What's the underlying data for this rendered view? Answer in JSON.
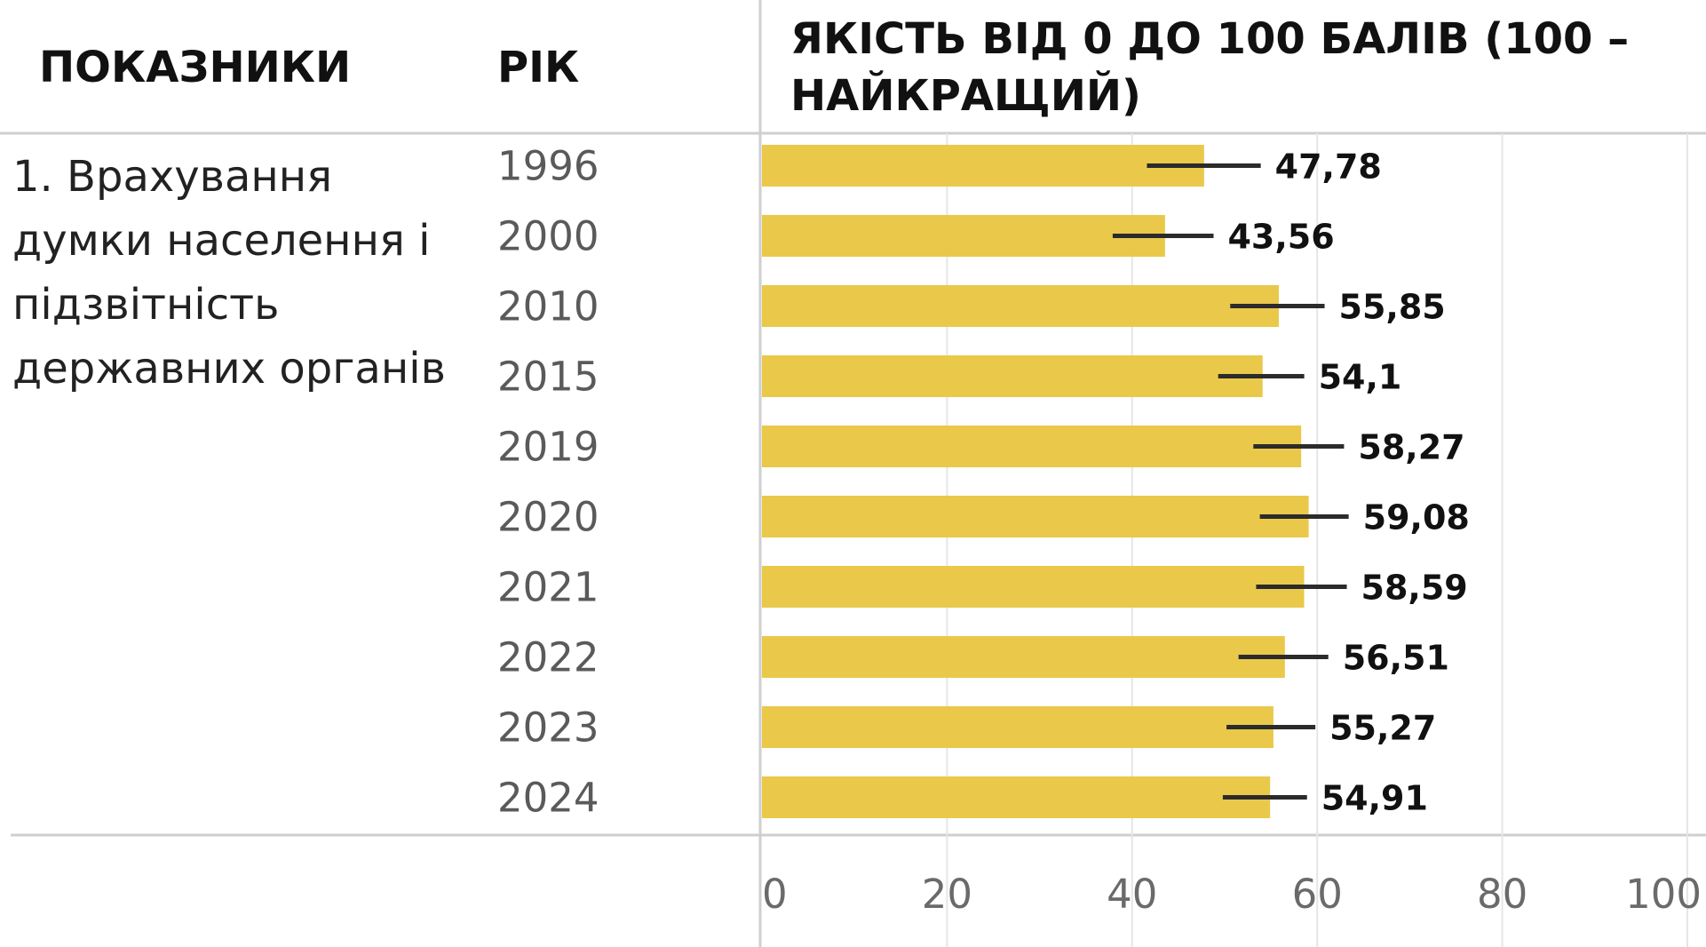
{
  "headers": {
    "indicator": "ПОКАЗНИКИ",
    "year": "РІК",
    "quality": "ЯКІСТЬ ВІД 0 ДО 100 БАЛІВ (100 – НАЙКРАЩИЙ)"
  },
  "indicator": {
    "name": "1. Врахування думки населення і підзвітність державних органів"
  },
  "colors": {
    "bar": "#EAC84A",
    "error_bar": "#2b2b2b",
    "grid": "#e6e6e6",
    "rule": "#cfcfcf"
  },
  "chart_data": {
    "type": "bar",
    "orientation": "horizontal",
    "categories": [
      "1996",
      "2000",
      "2010",
      "2015",
      "2019",
      "2020",
      "2021",
      "2022",
      "2023",
      "2024"
    ],
    "values": [
      47.78,
      43.56,
      55.85,
      54.1,
      58.27,
      59.08,
      58.59,
      56.51,
      55.27,
      54.91
    ],
    "value_labels": [
      "47,78",
      "43,56",
      "55,85",
      "54,1",
      "58,27",
      "59,08",
      "58,59",
      "56,51",
      "55,27",
      "54,91"
    ],
    "error_low": [
      41.6,
      37.9,
      50.6,
      49.3,
      53.1,
      53.8,
      53.4,
      51.5,
      50.2,
      49.8
    ],
    "error_high": [
      53.9,
      48.8,
      60.8,
      58.6,
      62.9,
      63.4,
      63.2,
      61.2,
      59.8,
      58.9
    ],
    "xlim": [
      0,
      100
    ],
    "xticks": [
      0,
      20,
      40,
      60,
      80,
      100
    ],
    "xtick_labels": [
      "0",
      "20",
      "40",
      "60",
      "80",
      "100"
    ],
    "grid": true
  }
}
